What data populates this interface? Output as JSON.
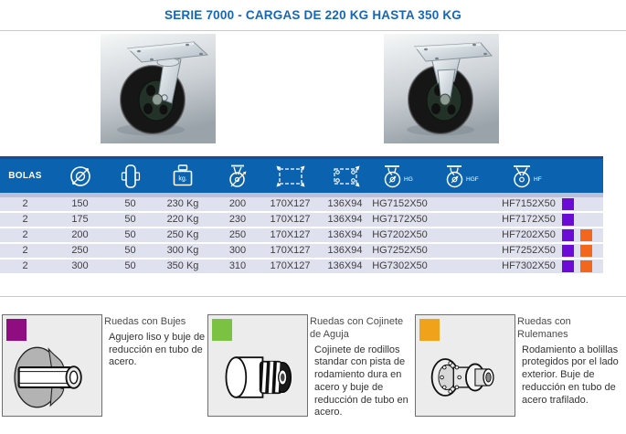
{
  "title": "SERIE 7000 - CARGAS DE 220 KG HASTA 350 KG",
  "table": {
    "header": {
      "bolas": "BOLAS",
      "load_icon_text": "kg.",
      "hg": "HG",
      "hgf": "HGF",
      "hf": "HF"
    },
    "rows": [
      {
        "bolas": "2",
        "diametro": "150",
        "ancho": "50",
        "carga": "230 Kg",
        "altura": "200",
        "platina": "170X127",
        "agujeros": "136X94",
        "hg": "HG7152X50",
        "hgf": "",
        "hf": "HF7152X50",
        "tipos": [
          "bujes"
        ]
      },
      {
        "bolas": "2",
        "diametro": "175",
        "ancho": "50",
        "carga": "220 Kg",
        "altura": "230",
        "platina": "170X127",
        "agujeros": "136X94",
        "hg": "HG7172X50",
        "hgf": "",
        "hf": "HF7172X50",
        "tipos": [
          "bujes"
        ]
      },
      {
        "bolas": "2",
        "diametro": "200",
        "ancho": "50",
        "carga": "250 Kg",
        "altura": "250",
        "platina": "170X127",
        "agujeros": "136X94",
        "hg": "HG7202X50",
        "hgf": "",
        "hf": "HF7202X50",
        "tipos": [
          "bujes",
          "rulemanes"
        ]
      },
      {
        "bolas": "2",
        "diametro": "250",
        "ancho": "50",
        "carga": "300 Kg",
        "altura": "300",
        "platina": "170X127",
        "agujeros": "136X94",
        "hg": "HG7252X50",
        "hgf": "",
        "hf": "HF7252X50",
        "tipos": [
          "bujes",
          "rulemanes"
        ]
      },
      {
        "bolas": "2",
        "diametro": "300",
        "ancho": "50",
        "carga": "350 Kg",
        "altura": "310",
        "platina": "170X127",
        "agujeros": "136X94",
        "hg": "HG7302X50",
        "hgf": "",
        "hf": "HF7302X50",
        "tipos": [
          "bujes",
          "rulemanes"
        ]
      }
    ]
  },
  "legend": [
    {
      "color": "#8F0D80",
      "title": "Ruedas con Bujes",
      "description": "Agujero liso y buje de reducción en tubo de acero."
    },
    {
      "color": "#7CC242",
      "title": "Ruedas con Cojinete de Aguja",
      "description": "Cojinete de rodillos standar con pista de rodamiento dura en acero y buje de reducción de tubo en acero."
    },
    {
      "color": "#F0A21B",
      "title": "Ruedas con Rulemanes",
      "description": "Rodamiento a bolillas protegidos por el lado exterior. Buje de reducción en tubo de acero trafilado."
    }
  ],
  "colors": {
    "accent_blue": "#0B63AF",
    "header_top_strip": "#1A4A94",
    "row_background": "#E0E1EE",
    "type_bujes": "#6C0BD6",
    "type_rulemanes": "#F2671C"
  }
}
